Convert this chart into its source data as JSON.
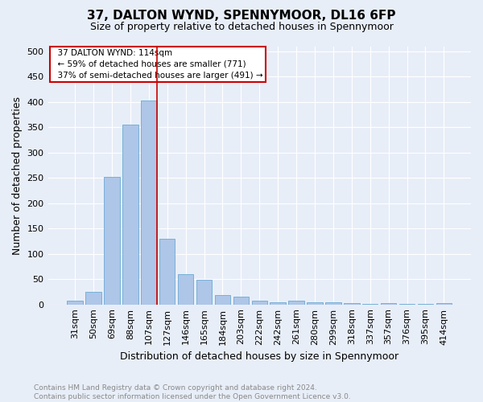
{
  "title_line1": "37, DALTON WYND, SPENNYMOOR, DL16 6FP",
  "title_line2": "Size of property relative to detached houses in Spennymoor",
  "xlabel": "Distribution of detached houses by size in Spennymoor",
  "ylabel": "Number of detached properties",
  "footnote_line1": "Contains HM Land Registry data © Crown copyright and database right 2024.",
  "footnote_line2": "Contains public sector information licensed under the Open Government Licence v3.0.",
  "categories": [
    "31sqm",
    "50sqm",
    "69sqm",
    "88sqm",
    "107sqm",
    "127sqm",
    "146sqm",
    "165sqm",
    "184sqm",
    "203sqm",
    "222sqm",
    "242sqm",
    "261sqm",
    "280sqm",
    "299sqm",
    "318sqm",
    "337sqm",
    "357sqm",
    "376sqm",
    "395sqm",
    "414sqm"
  ],
  "values": [
    7,
    25,
    252,
    355,
    403,
    130,
    60,
    49,
    19,
    15,
    7,
    5,
    8,
    4,
    4,
    3,
    1,
    2,
    1,
    1,
    3
  ],
  "bar_color": "#aec6e8",
  "bar_edge_color": "#6aaad4",
  "vline_color": "#cc0000",
  "vline_x_index": 4,
  "annotation_text_line1": "  37 DALTON WYND: 114sqm",
  "annotation_text_line2": "  ← 59% of detached houses are smaller (771)",
  "annotation_text_line3": "  37% of semi-detached houses are larger (491) →",
  "annotation_box_color": "#ffffff",
  "annotation_box_edge": "#cc0000",
  "ylim": [
    0,
    510
  ],
  "yticks": [
    0,
    50,
    100,
    150,
    200,
    250,
    300,
    350,
    400,
    450,
    500
  ],
  "background_color": "#e8eef8",
  "plot_bg_color": "#e8eef8",
  "grid_color": "#ffffff",
  "title_fontsize": 11,
  "subtitle_fontsize": 9,
  "ylabel_fontsize": 9,
  "xlabel_fontsize": 9,
  "tick_fontsize": 8,
  "footnote_fontsize": 6.5
}
